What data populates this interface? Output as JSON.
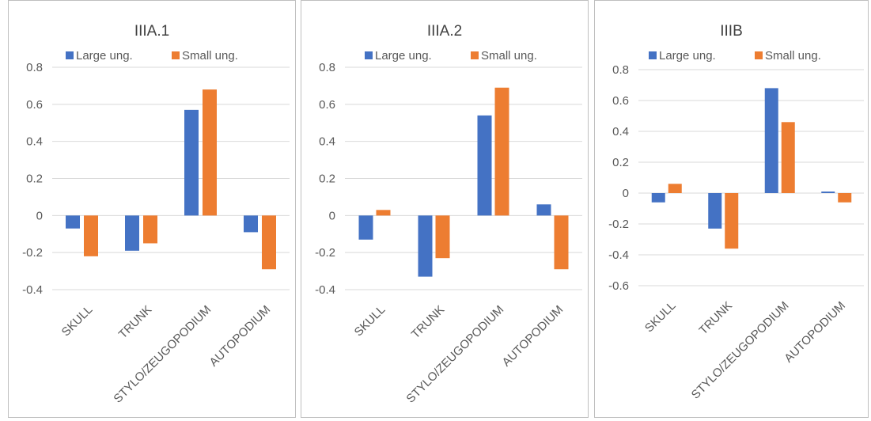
{
  "colors": {
    "large": "#4472c4",
    "small": "#ed7d31",
    "grid": "#d9d9d9",
    "axis_text": "#595959",
    "title_text": "#404040"
  },
  "chart_data": [
    {
      "type": "bar",
      "title": "IIIA.1",
      "categories": [
        "SKULL",
        "TRUNK",
        "STYLO/ZEUGOPODIUM",
        "AUTOPODIUM"
      ],
      "series": [
        {
          "name": "Large ung.",
          "values": [
            -0.07,
            -0.19,
            0.57,
            -0.09
          ]
        },
        {
          "name": "Small ung.",
          "values": [
            -0.22,
            -0.15,
            0.68,
            -0.29
          ]
        }
      ],
      "yticks": [
        "0.8",
        "0.6",
        "0.4",
        "0.2",
        "0",
        "-0.2",
        "-0.4"
      ],
      "ylim": [
        -0.4,
        0.8
      ],
      "grid": true,
      "legend": "top"
    },
    {
      "type": "bar",
      "title": "IIIA.2",
      "categories": [
        "SKULL",
        "TRUNK",
        "STYLO/ZEUGOPODIUM",
        "AUTOPODIUM"
      ],
      "series": [
        {
          "name": "Large ung.",
          "values": [
            -0.13,
            -0.33,
            0.54,
            0.06
          ]
        },
        {
          "name": "Small ung.",
          "values": [
            0.03,
            -0.23,
            0.69,
            -0.29
          ]
        }
      ],
      "yticks": [
        "0.8",
        "0.6",
        "0.4",
        "0.2",
        "0",
        "-0.2",
        "-0.4"
      ],
      "ylim": [
        -0.4,
        0.8
      ],
      "grid": true,
      "legend": "top"
    },
    {
      "type": "bar",
      "title": "IIIB",
      "categories": [
        "SKULL",
        "TRUNK",
        "STYLO/ZEUGOPODIUM",
        "AUTOPODIUM"
      ],
      "series": [
        {
          "name": "Large ung.",
          "values": [
            -0.06,
            -0.23,
            0.68,
            0.01
          ]
        },
        {
          "name": "Small ung.",
          "values": [
            0.06,
            -0.36,
            0.46,
            -0.06
          ]
        }
      ],
      "yticks": [
        "0.8",
        "0.6",
        "0.4",
        "0.2",
        "0",
        "-0.2",
        "-0.4",
        "-0.6"
      ],
      "ylim": [
        -0.6,
        0.8
      ],
      "grid": true,
      "legend": "top"
    }
  ]
}
